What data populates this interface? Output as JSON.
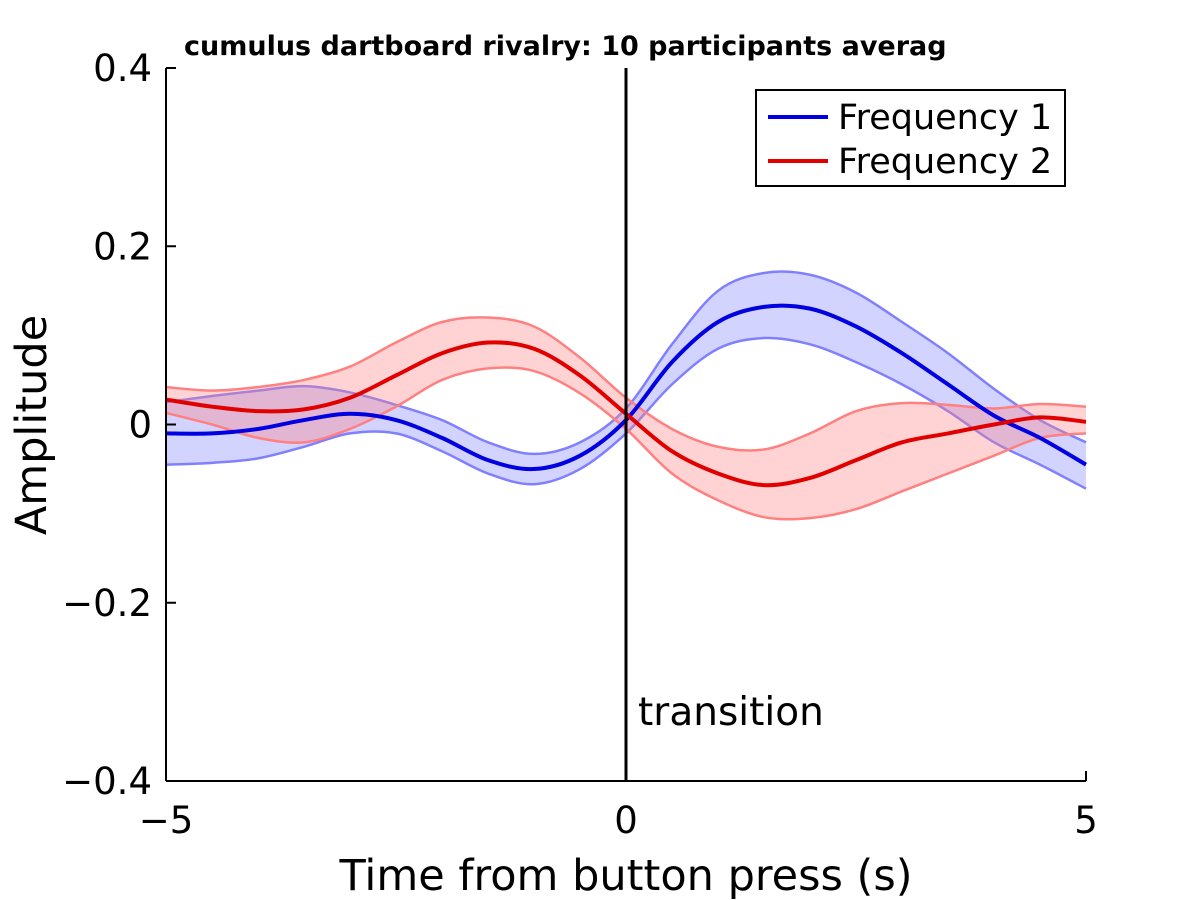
{
  "chart_data": {
    "type": "line",
    "title": "cumulus dartboard rivalry: 10 participants averag",
    "xlabel": "Time from button press (s)",
    "ylabel": "Amplitude",
    "xlim": [
      -5,
      5
    ],
    "ylim": [
      -0.4,
      0.4
    ],
    "xticks": [
      -5,
      0,
      5
    ],
    "xtick_labels": [
      "−5",
      "0",
      "5"
    ],
    "yticks": [
      -0.4,
      -0.2,
      0,
      0.2,
      0.4
    ],
    "ytick_labels": [
      "−0.4",
      "−0.2",
      "0",
      "0.2",
      "0.4"
    ],
    "grid": false,
    "legend_position": "top-right",
    "annotations": [
      {
        "type": "vline",
        "x": 0,
        "label": "transition",
        "color": "#000000"
      }
    ],
    "x": [
      -5,
      -4.5,
      -4,
      -3.5,
      -3,
      -2.5,
      -2,
      -1.5,
      -1,
      -0.5,
      0,
      0.5,
      1,
      1.5,
      2,
      2.5,
      3,
      3.5,
      4,
      4.5,
      5
    ],
    "series": [
      {
        "name": "Frequency 1",
        "color": "#0000e0",
        "band_color": "#8080ff",
        "values": [
          -0.01,
          -0.01,
          -0.005,
          0.005,
          0.012,
          0.005,
          -0.015,
          -0.04,
          -0.05,
          -0.035,
          0.005,
          0.07,
          0.115,
          0.132,
          0.13,
          0.11,
          0.08,
          0.045,
          0.01,
          -0.015,
          -0.045
        ],
        "upper": [
          0.025,
          0.032,
          0.038,
          0.043,
          0.036,
          0.022,
          0.005,
          -0.02,
          -0.033,
          -0.02,
          0.018,
          0.09,
          0.15,
          0.17,
          0.168,
          0.148,
          0.115,
          0.08,
          0.04,
          0.005,
          -0.02
        ],
        "lower": [
          -0.045,
          -0.043,
          -0.038,
          -0.025,
          -0.01,
          -0.01,
          -0.03,
          -0.055,
          -0.067,
          -0.05,
          -0.01,
          0.045,
          0.085,
          0.097,
          0.09,
          0.07,
          0.045,
          0.015,
          -0.02,
          -0.045,
          -0.072
        ]
      },
      {
        "name": "Frequency 2",
        "color": "#e00000",
        "band_color": "#ff8080",
        "values": [
          0.028,
          0.02,
          0.015,
          0.017,
          0.03,
          0.055,
          0.08,
          0.092,
          0.085,
          0.055,
          0.012,
          -0.03,
          -0.055,
          -0.068,
          -0.06,
          -0.04,
          -0.02,
          -0.01,
          0.0,
          0.008,
          0.003
        ],
        "upper": [
          0.042,
          0.038,
          0.042,
          0.05,
          0.065,
          0.092,
          0.115,
          0.12,
          0.11,
          0.075,
          0.03,
          -0.005,
          -0.025,
          -0.028,
          -0.01,
          0.015,
          0.024,
          0.022,
          0.018,
          0.023,
          0.02
        ],
        "lower": [
          0.013,
          0.0,
          -0.015,
          -0.02,
          -0.005,
          0.02,
          0.05,
          0.063,
          0.06,
          0.035,
          -0.005,
          -0.055,
          -0.085,
          -0.104,
          -0.105,
          -0.095,
          -0.075,
          -0.055,
          -0.035,
          -0.015,
          -0.01
        ]
      }
    ]
  }
}
